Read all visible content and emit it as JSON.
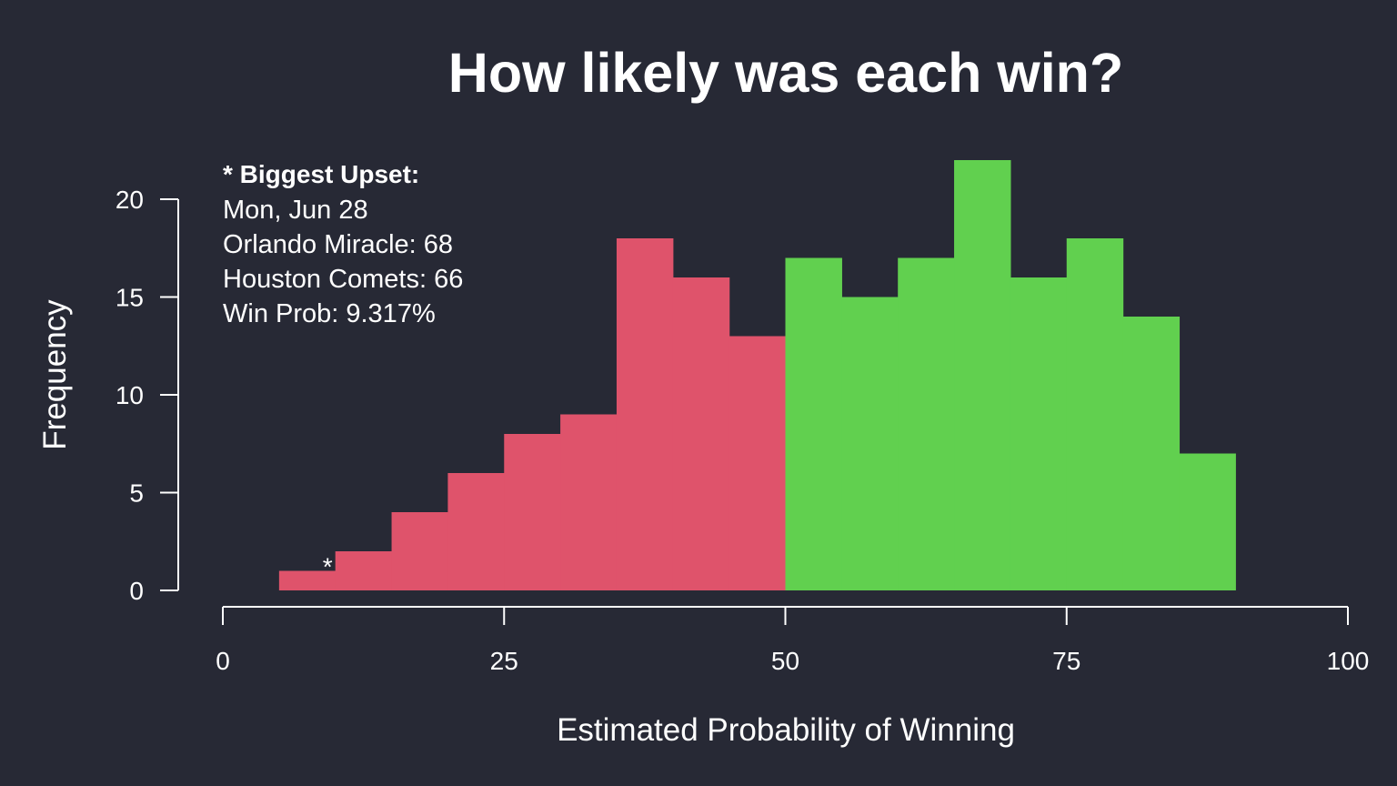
{
  "chart_data": {
    "type": "bar",
    "title": "How likely was each win?",
    "xlabel": "Estimated Probability of Winning",
    "ylabel": "Frequency",
    "xlim": [
      0,
      100
    ],
    "ylim": [
      0,
      20
    ],
    "x_ticks": [
      "0",
      "25",
      "50",
      "75",
      "100"
    ],
    "y_ticks": [
      "0",
      "5",
      "10",
      "15",
      "20"
    ],
    "bin_width": 5,
    "bins": [
      {
        "start": 5,
        "end": 10,
        "count": 1
      },
      {
        "start": 10,
        "end": 15,
        "count": 2
      },
      {
        "start": 15,
        "end": 20,
        "count": 4
      },
      {
        "start": 20,
        "end": 25,
        "count": 6
      },
      {
        "start": 25,
        "end": 30,
        "count": 8
      },
      {
        "start": 30,
        "end": 35,
        "count": 9
      },
      {
        "start": 35,
        "end": 40,
        "count": 18
      },
      {
        "start": 40,
        "end": 45,
        "count": 16
      },
      {
        "start": 45,
        "end": 50,
        "count": 13
      },
      {
        "start": 50,
        "end": 55,
        "count": 17
      },
      {
        "start": 55,
        "end": 60,
        "count": 15
      },
      {
        "start": 60,
        "end": 65,
        "count": 17
      },
      {
        "start": 65,
        "end": 70,
        "count": 22
      },
      {
        "start": 70,
        "end": 75,
        "count": 16
      },
      {
        "start": 75,
        "end": 80,
        "count": 18
      },
      {
        "start": 80,
        "end": 85,
        "count": 14
      },
      {
        "start": 85,
        "end": 90,
        "count": 7
      }
    ],
    "colors": {
      "below_50": "#df536b",
      "at_or_above_50": "#61d04f",
      "background": "#272935",
      "foreground": "#ffffff"
    },
    "marker": {
      "symbol": "*",
      "x": 9.317,
      "y": 1
    },
    "annotation": {
      "heading": "* Biggest Upset:",
      "lines": [
        "Mon, Jun 28",
        "Orlando Miracle: 68",
        "Houston Comets: 66",
        "Win Prob: 9.317%"
      ]
    }
  }
}
